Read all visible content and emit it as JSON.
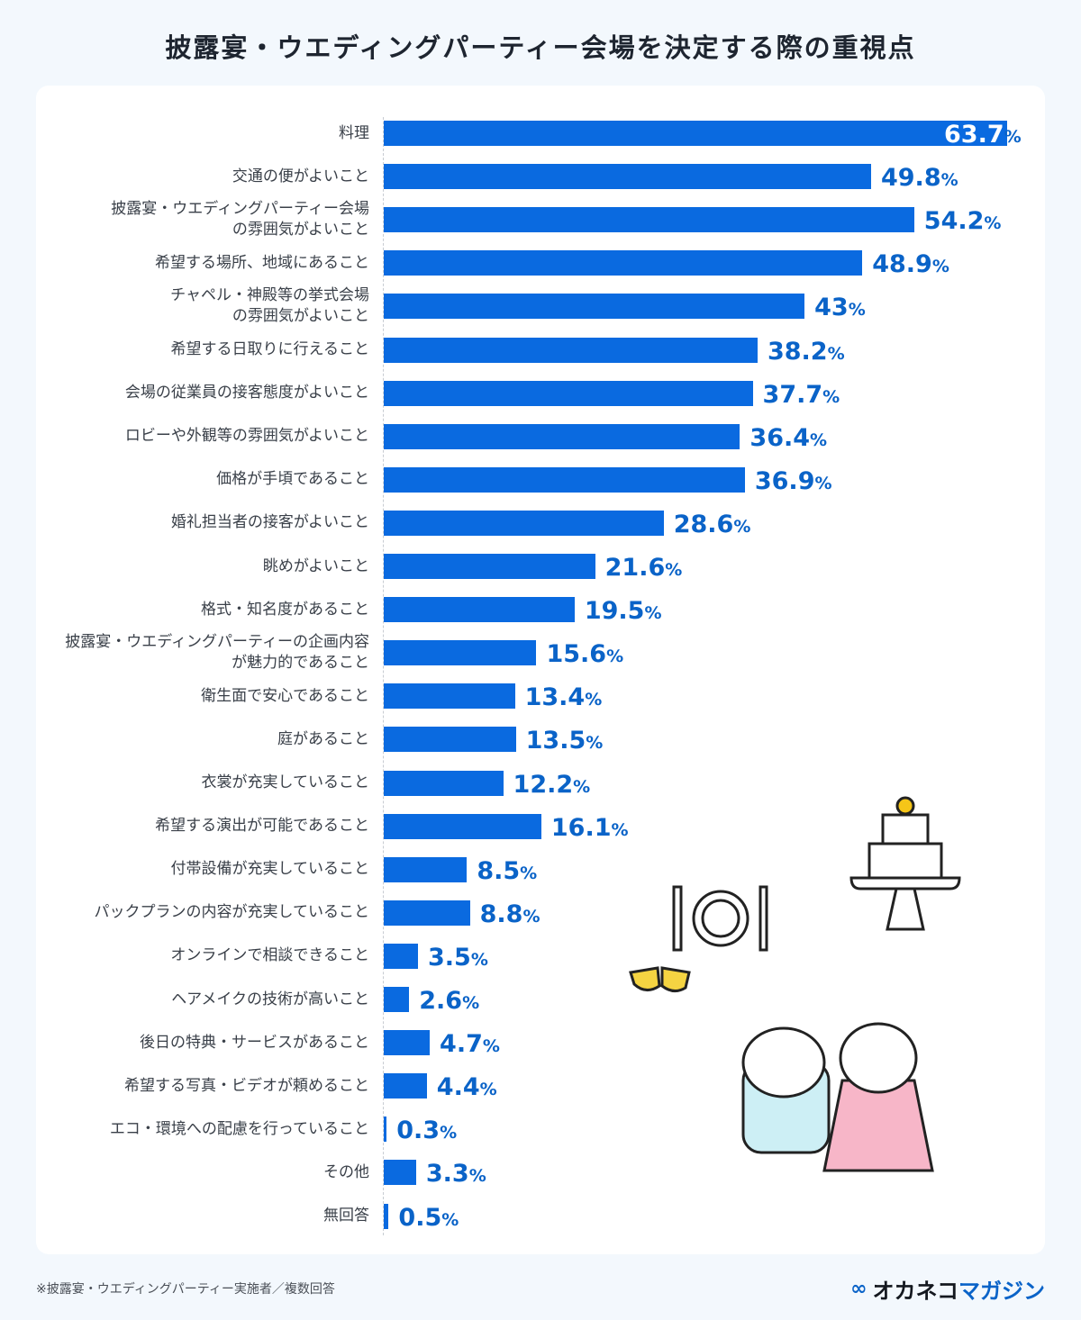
{
  "title": "披露宴・ウエディングパーティー会場を決定する際の重視点",
  "chart_data": {
    "type": "bar",
    "orientation": "horizontal",
    "title": "披露宴・ウエディングパーティー会場を決定する際の重視点",
    "unit": "%",
    "categories": [
      "料理",
      "交通の便がよいこと",
      "披露宴・ウエディングパーティー会場\nの雰囲気がよいこと",
      "希望する場所、地域にあること",
      "チャペル・神殿等の挙式会場\nの雰囲気がよいこと",
      "希望する日取りに行えること",
      "会場の従業員の接客態度がよいこと",
      "ロビーや外観等の雰囲気がよいこと",
      "価格が手頃であること",
      "婚礼担当者の接客がよいこと",
      "眺めがよいこと",
      "格式・知名度があること",
      "披露宴・ウエディングパーティーの企画内容\nが魅力的であること",
      "衛生面で安心であること",
      "庭があること",
      "衣裳が充実していること",
      "希望する演出が可能であること",
      "付帯設備が充実していること",
      "パックプランの内容が充実していること",
      "オンラインで相談できること",
      "ヘアメイクの技術が高いこと",
      "後日の特典・サービスがあること",
      "希望する写真・ビデオが頼めること",
      "エコ・環境への配慮を行っていること",
      "その他",
      "無回答"
    ],
    "values": [
      63.7,
      49.8,
      54.2,
      48.9,
      43,
      38.2,
      37.7,
      36.4,
      36.9,
      28.6,
      21.6,
      19.5,
      15.6,
      13.4,
      13.5,
      12.2,
      16.1,
      8.5,
      8.8,
      3.5,
      2.6,
      4.7,
      4.4,
      0.3,
      3.3,
      0.5
    ],
    "value_labels": [
      "63.7",
      "49.8",
      "54.2",
      "48.9",
      "43",
      "38.2",
      "37.7",
      "36.4",
      "36.9",
      "28.6",
      "21.6",
      "19.5",
      "15.6",
      "13.4",
      "13.5",
      "12.2",
      "16.1",
      "8.5",
      "8.8",
      "3.5",
      "2.6",
      "4.7",
      "4.4",
      "0.3",
      "3.3",
      "0.5"
    ],
    "bar_color": "#0a6ae0",
    "label_color": "#0a63c8",
    "grid": false
  },
  "footer": {
    "note": "※披露宴・ウエディングパーティー実施者／複数回答",
    "logo_dark": "オカネコ",
    "logo_blue": "マガジン"
  }
}
